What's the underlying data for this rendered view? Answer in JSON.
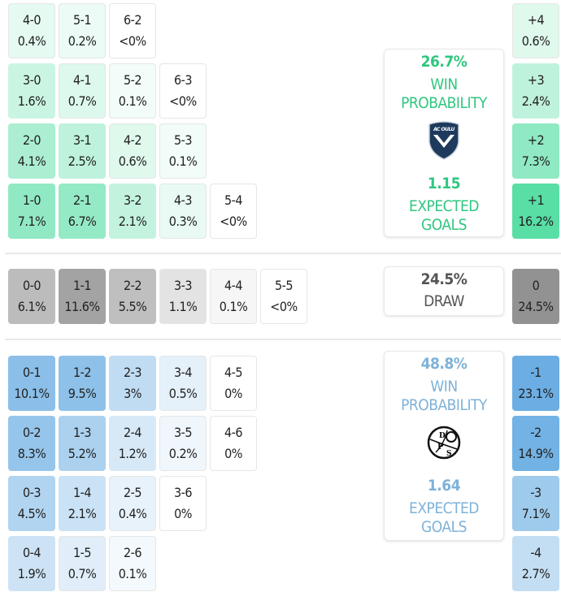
{
  "colors": {
    "home": "#50dca0",
    "away": "#64aae1",
    "draw": "#8c8c8c",
    "home_text": "#2fc77f",
    "away_text": "#7eb2d8",
    "draw_text": "#555555"
  },
  "home_scores": [
    [
      {
        "s": "4-0",
        "p": "0.4%"
      },
      {
        "s": "5-1",
        "p": "0.2%"
      },
      {
        "s": "6-2",
        "p": "<0%"
      }
    ],
    [
      {
        "s": "3-0",
        "p": "1.6%"
      },
      {
        "s": "4-1",
        "p": "0.7%"
      },
      {
        "s": "5-2",
        "p": "0.1%"
      },
      {
        "s": "6-3",
        "p": "<0%"
      }
    ],
    [
      {
        "s": "2-0",
        "p": "4.1%"
      },
      {
        "s": "3-1",
        "p": "2.5%"
      },
      {
        "s": "4-2",
        "p": "0.6%"
      },
      {
        "s": "5-3",
        "p": "0.1%"
      }
    ],
    [
      {
        "s": "1-0",
        "p": "7.1%"
      },
      {
        "s": "2-1",
        "p": "6.7%"
      },
      {
        "s": "3-2",
        "p": "2.1%"
      },
      {
        "s": "4-3",
        "p": "0.3%"
      },
      {
        "s": "5-4",
        "p": "<0%"
      }
    ]
  ],
  "draw_scores": [
    [
      {
        "s": "0-0",
        "p": "6.1%"
      },
      {
        "s": "1-1",
        "p": "11.6%"
      },
      {
        "s": "2-2",
        "p": "5.5%"
      },
      {
        "s": "3-3",
        "p": "1.1%"
      },
      {
        "s": "4-4",
        "p": "0.1%"
      },
      {
        "s": "5-5",
        "p": "<0%"
      }
    ]
  ],
  "away_scores": [
    [
      {
        "s": "0-1",
        "p": "10.1%"
      },
      {
        "s": "1-2",
        "p": "9.5%"
      },
      {
        "s": "2-3",
        "p": "3%"
      },
      {
        "s": "3-4",
        "p": "0.5%"
      },
      {
        "s": "4-5",
        "p": "0%"
      }
    ],
    [
      {
        "s": "0-2",
        "p": "8.3%"
      },
      {
        "s": "1-3",
        "p": "5.2%"
      },
      {
        "s": "2-4",
        "p": "1.2%"
      },
      {
        "s": "3-5",
        "p": "0.2%"
      },
      {
        "s": "4-6",
        "p": "0%"
      }
    ],
    [
      {
        "s": "0-3",
        "p": "4.5%"
      },
      {
        "s": "1-4",
        "p": "2.1%"
      },
      {
        "s": "2-5",
        "p": "0.4%"
      },
      {
        "s": "3-6",
        "p": "0%"
      }
    ],
    [
      {
        "s": "0-4",
        "p": "1.9%"
      },
      {
        "s": "1-5",
        "p": "0.7%"
      },
      {
        "s": "2-6",
        "p": "0.1%"
      }
    ]
  ],
  "margins": {
    "home": [
      {
        "s": "+4",
        "p": "0.6%"
      },
      {
        "s": "+3",
        "p": "2.4%"
      },
      {
        "s": "+2",
        "p": "7.3%"
      },
      {
        "s": "+1",
        "p": "16.2%"
      }
    ],
    "draw": [
      {
        "s": "0",
        "p": "24.5%"
      }
    ],
    "away": [
      {
        "s": "-1",
        "p": "23.1%"
      },
      {
        "s": "-2",
        "p": "14.9%"
      },
      {
        "s": "-3",
        "p": "7.1%"
      },
      {
        "s": "-4",
        "p": "2.7%"
      }
    ]
  },
  "summary": {
    "home": {
      "win_pct": "26.7%",
      "win_label_1": "WIN",
      "win_label_2": "PROBABILITY",
      "xg": "1.15",
      "xg_label_1": "EXPECTED",
      "xg_label_2": "GOALS",
      "logo_text": "AC OULU"
    },
    "draw": {
      "pct": "24.5%",
      "label": "DRAW"
    },
    "away": {
      "win_pct": "48.8%",
      "win_label_1": "WIN",
      "win_label_2": "PROBABILITY",
      "xg": "1.64",
      "xg_label_1": "EXPECTED",
      "xg_label_2": "GOALS",
      "logo_text": "DPS"
    }
  }
}
